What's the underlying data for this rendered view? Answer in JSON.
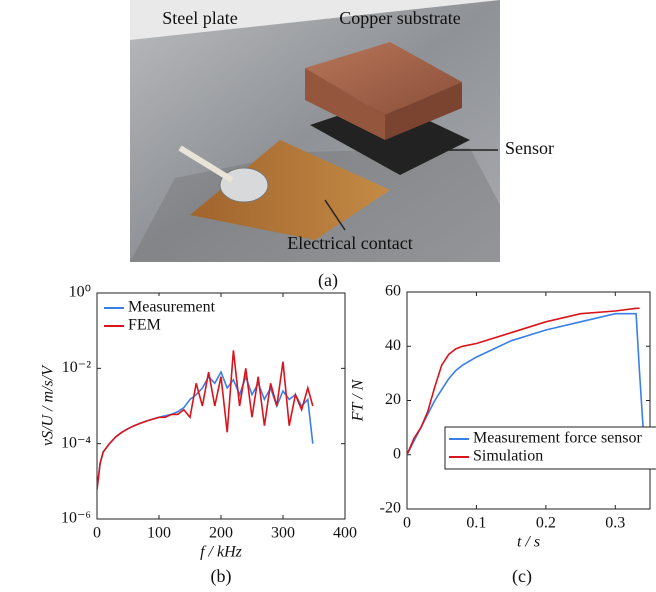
{
  "photo": {
    "labels": [
      "Steel plate",
      "Copper substrate",
      "Sensor",
      "Electrical contact"
    ],
    "caption": "(a)"
  },
  "chart_data": [
    {
      "type": "line",
      "caption": "(b)",
      "xlabel": "f / kHz",
      "ylabel": "vS/U / m/s/V",
      "log_y": true,
      "legend": "upper left",
      "xlim": [
        0,
        400
      ],
      "xticks": [
        0,
        100,
        200,
        300,
        400
      ],
      "ylim": [
        1e-06,
        1
      ],
      "yticks": [
        {
          "value": 1e-06,
          "label": "10⁻⁶"
        },
        {
          "value": 0.0001,
          "label": "10⁻⁴"
        },
        {
          "value": 0.01,
          "label": "10⁻²"
        },
        {
          "value": 1,
          "label": "10⁰"
        }
      ],
      "x": [
        0,
        5,
        10,
        20,
        30,
        40,
        50,
        60,
        70,
        80,
        90,
        100,
        110,
        120,
        130,
        140,
        150,
        160,
        170,
        180,
        190,
        200,
        210,
        220,
        230,
        240,
        250,
        260,
        270,
        280,
        290,
        300,
        310,
        320,
        330,
        340,
        348
      ],
      "series": [
        {
          "name": "Measurement",
          "color": "#3a7fe8",
          "values": [
            6e-06,
            3e-05,
            6e-05,
            0.0001,
            0.00015,
            0.0002,
            0.00025,
            0.0003,
            0.00035,
            0.0004,
            0.00045,
            0.0005,
            0.00055,
            0.0006,
            0.0007,
            0.0009,
            0.0015,
            0.002,
            0.003,
            0.006,
            0.004,
            0.008,
            0.003,
            0.005,
            0.002,
            0.006,
            0.002,
            0.004,
            0.0015,
            0.003,
            0.001,
            0.0025,
            0.0015,
            0.002,
            0.001,
            0.0015,
            0.0001
          ]
        },
        {
          "name": "FEM",
          "color": "#d8141c",
          "values": [
            6e-06,
            3e-05,
            6e-05,
            0.0001,
            0.00015,
            0.0002,
            0.00025,
            0.0003,
            0.00035,
            0.0004,
            0.00045,
            0.0005,
            0.0005,
            0.0006,
            0.0006,
            0.0008,
            0.0005,
            0.004,
            0.001,
            0.008,
            0.001,
            0.006,
            0.0002,
            0.03,
            0.001,
            0.01,
            0.0005,
            0.006,
            0.0003,
            0.004,
            0.001,
            0.015,
            0.0003,
            0.002,
            0.0008,
            0.003,
            0.001
          ]
        }
      ]
    },
    {
      "type": "line",
      "caption": "(c)",
      "xlabel": "t / s",
      "ylabel": "FT / N",
      "log_y": false,
      "legend": "lower right",
      "xlim": [
        0,
        0.35
      ],
      "xticks": [
        0,
        0.1,
        0.2,
        0.3
      ],
      "ylim": [
        -20,
        60
      ],
      "yticks": [
        -20,
        0,
        20,
        40,
        60
      ],
      "x": [
        0,
        0.01,
        0.02,
        0.03,
        0.04,
        0.05,
        0.06,
        0.07,
        0.08,
        0.1,
        0.15,
        0.2,
        0.25,
        0.3,
        0.33,
        0.335,
        0.34,
        0.345,
        0.35
      ],
      "series": [
        {
          "name": "Measurement force sensor",
          "color": "#3a7fe8",
          "values": [
            0,
            5,
            10,
            15,
            20,
            24,
            28,
            31,
            33,
            36,
            42,
            46,
            49,
            52,
            52,
            30,
            10,
            3,
            1
          ]
        },
        {
          "name": "Simulation",
          "color": "#d8141c",
          "values": [
            0,
            6,
            10,
            16,
            25,
            33,
            37,
            39,
            40,
            41,
            45,
            49,
            52,
            53,
            54,
            54,
            null,
            null,
            null
          ]
        }
      ]
    }
  ]
}
